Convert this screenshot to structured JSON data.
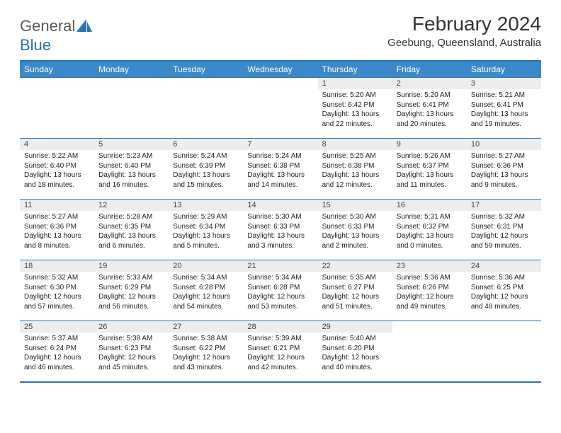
{
  "logo": {
    "text1": "General",
    "text2": "Blue"
  },
  "title": "February 2024",
  "location": "Geebung, Queensland, Australia",
  "colors": {
    "header_bg": "#3b89c9",
    "border": "#2a73b8",
    "daynum_bg": "#ededed",
    "text": "#222222"
  },
  "weekdays": [
    "Sunday",
    "Monday",
    "Tuesday",
    "Wednesday",
    "Thursday",
    "Friday",
    "Saturday"
  ],
  "weeks": [
    [
      {
        "n": "",
        "sr": "",
        "ss": "",
        "dl": ""
      },
      {
        "n": "",
        "sr": "",
        "ss": "",
        "dl": ""
      },
      {
        "n": "",
        "sr": "",
        "ss": "",
        "dl": ""
      },
      {
        "n": "",
        "sr": "",
        "ss": "",
        "dl": ""
      },
      {
        "n": "1",
        "sr": "Sunrise: 5:20 AM",
        "ss": "Sunset: 6:42 PM",
        "dl": "Daylight: 13 hours and 22 minutes."
      },
      {
        "n": "2",
        "sr": "Sunrise: 5:20 AM",
        "ss": "Sunset: 6:41 PM",
        "dl": "Daylight: 13 hours and 20 minutes."
      },
      {
        "n": "3",
        "sr": "Sunrise: 5:21 AM",
        "ss": "Sunset: 6:41 PM",
        "dl": "Daylight: 13 hours and 19 minutes."
      }
    ],
    [
      {
        "n": "4",
        "sr": "Sunrise: 5:22 AM",
        "ss": "Sunset: 6:40 PM",
        "dl": "Daylight: 13 hours and 18 minutes."
      },
      {
        "n": "5",
        "sr": "Sunrise: 5:23 AM",
        "ss": "Sunset: 6:40 PM",
        "dl": "Daylight: 13 hours and 16 minutes."
      },
      {
        "n": "6",
        "sr": "Sunrise: 5:24 AM",
        "ss": "Sunset: 6:39 PM",
        "dl": "Daylight: 13 hours and 15 minutes."
      },
      {
        "n": "7",
        "sr": "Sunrise: 5:24 AM",
        "ss": "Sunset: 6:38 PM",
        "dl": "Daylight: 13 hours and 14 minutes."
      },
      {
        "n": "8",
        "sr": "Sunrise: 5:25 AM",
        "ss": "Sunset: 6:38 PM",
        "dl": "Daylight: 13 hours and 12 minutes."
      },
      {
        "n": "9",
        "sr": "Sunrise: 5:26 AM",
        "ss": "Sunset: 6:37 PM",
        "dl": "Daylight: 13 hours and 11 minutes."
      },
      {
        "n": "10",
        "sr": "Sunrise: 5:27 AM",
        "ss": "Sunset: 6:36 PM",
        "dl": "Daylight: 13 hours and 9 minutes."
      }
    ],
    [
      {
        "n": "11",
        "sr": "Sunrise: 5:27 AM",
        "ss": "Sunset: 6:36 PM",
        "dl": "Daylight: 13 hours and 8 minutes."
      },
      {
        "n": "12",
        "sr": "Sunrise: 5:28 AM",
        "ss": "Sunset: 6:35 PM",
        "dl": "Daylight: 13 hours and 6 minutes."
      },
      {
        "n": "13",
        "sr": "Sunrise: 5:29 AM",
        "ss": "Sunset: 6:34 PM",
        "dl": "Daylight: 13 hours and 5 minutes."
      },
      {
        "n": "14",
        "sr": "Sunrise: 5:30 AM",
        "ss": "Sunset: 6:33 PM",
        "dl": "Daylight: 13 hours and 3 minutes."
      },
      {
        "n": "15",
        "sr": "Sunrise: 5:30 AM",
        "ss": "Sunset: 6:33 PM",
        "dl": "Daylight: 13 hours and 2 minutes."
      },
      {
        "n": "16",
        "sr": "Sunrise: 5:31 AM",
        "ss": "Sunset: 6:32 PM",
        "dl": "Daylight: 13 hours and 0 minutes."
      },
      {
        "n": "17",
        "sr": "Sunrise: 5:32 AM",
        "ss": "Sunset: 6:31 PM",
        "dl": "Daylight: 12 hours and 59 minutes."
      }
    ],
    [
      {
        "n": "18",
        "sr": "Sunrise: 5:32 AM",
        "ss": "Sunset: 6:30 PM",
        "dl": "Daylight: 12 hours and 57 minutes."
      },
      {
        "n": "19",
        "sr": "Sunrise: 5:33 AM",
        "ss": "Sunset: 6:29 PM",
        "dl": "Daylight: 12 hours and 56 minutes."
      },
      {
        "n": "20",
        "sr": "Sunrise: 5:34 AM",
        "ss": "Sunset: 6:28 PM",
        "dl": "Daylight: 12 hours and 54 minutes."
      },
      {
        "n": "21",
        "sr": "Sunrise: 5:34 AM",
        "ss": "Sunset: 6:28 PM",
        "dl": "Daylight: 12 hours and 53 minutes."
      },
      {
        "n": "22",
        "sr": "Sunrise: 5:35 AM",
        "ss": "Sunset: 6:27 PM",
        "dl": "Daylight: 12 hours and 51 minutes."
      },
      {
        "n": "23",
        "sr": "Sunrise: 5:36 AM",
        "ss": "Sunset: 6:26 PM",
        "dl": "Daylight: 12 hours and 49 minutes."
      },
      {
        "n": "24",
        "sr": "Sunrise: 5:36 AM",
        "ss": "Sunset: 6:25 PM",
        "dl": "Daylight: 12 hours and 48 minutes."
      }
    ],
    [
      {
        "n": "25",
        "sr": "Sunrise: 5:37 AM",
        "ss": "Sunset: 6:24 PM",
        "dl": "Daylight: 12 hours and 46 minutes."
      },
      {
        "n": "26",
        "sr": "Sunrise: 5:38 AM",
        "ss": "Sunset: 6:23 PM",
        "dl": "Daylight: 12 hours and 45 minutes."
      },
      {
        "n": "27",
        "sr": "Sunrise: 5:38 AM",
        "ss": "Sunset: 6:22 PM",
        "dl": "Daylight: 12 hours and 43 minutes."
      },
      {
        "n": "28",
        "sr": "Sunrise: 5:39 AM",
        "ss": "Sunset: 6:21 PM",
        "dl": "Daylight: 12 hours and 42 minutes."
      },
      {
        "n": "29",
        "sr": "Sunrise: 5:40 AM",
        "ss": "Sunset: 6:20 PM",
        "dl": "Daylight: 12 hours and 40 minutes."
      },
      {
        "n": "",
        "sr": "",
        "ss": "",
        "dl": ""
      },
      {
        "n": "",
        "sr": "",
        "ss": "",
        "dl": ""
      }
    ]
  ]
}
